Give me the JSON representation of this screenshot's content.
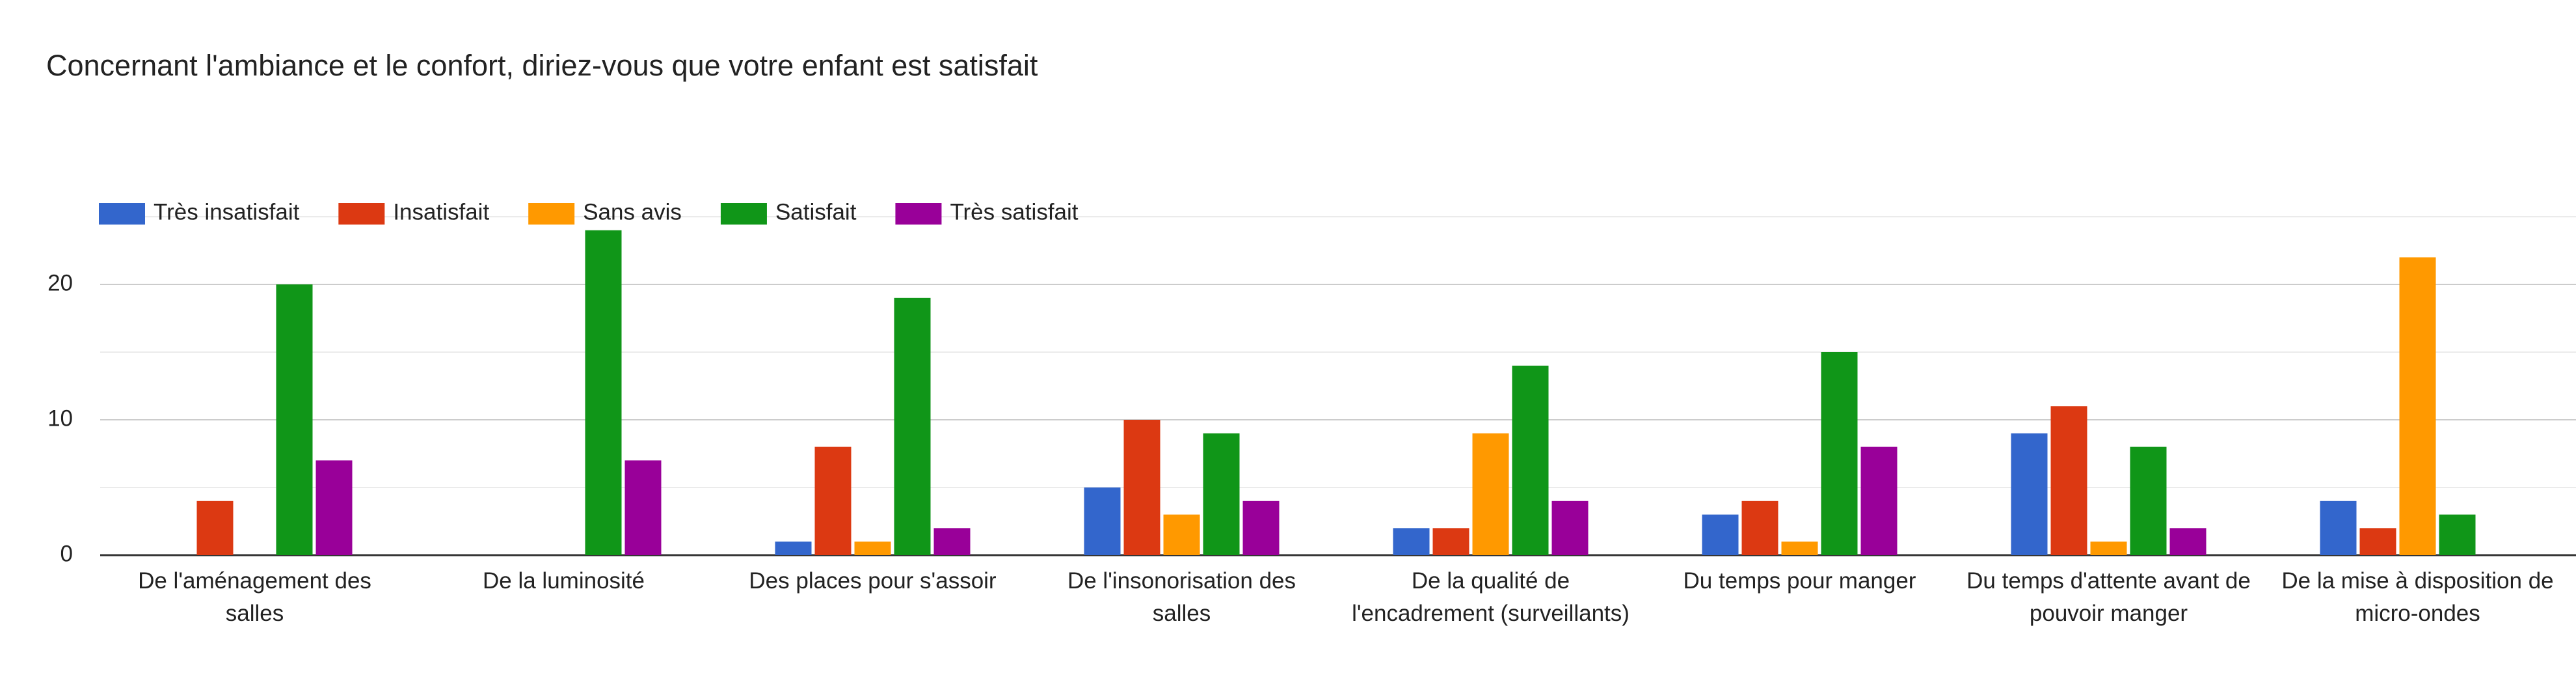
{
  "chart_data": {
    "type": "bar",
    "title": "Concernant l'ambiance et le confort, diriez-vous que votre enfant est satisfait",
    "categories": [
      "De l'aménagement des salles",
      "De la luminosité",
      "Des places pour s'assoir",
      "De l'insonorisation des salles",
      "De la qualité de l'encadrement (surveillants)",
      "Du temps pour manger",
      "Du temps d'attente avant de pouvoir manger",
      "De la mise à disposition de micro-ondes"
    ],
    "series": [
      {
        "name": "Très insatisfait",
        "color": "#3366cc",
        "values": [
          0,
          0,
          1,
          5,
          2,
          3,
          9,
          4
        ]
      },
      {
        "name": "Insatisfait",
        "color": "#dc3912",
        "values": [
          4,
          0,
          8,
          10,
          2,
          4,
          11,
          2
        ]
      },
      {
        "name": "Sans avis",
        "color": "#ff9900",
        "values": [
          0,
          0,
          1,
          3,
          9,
          1,
          1,
          22
        ]
      },
      {
        "name": "Satisfait",
        "color": "#109618",
        "values": [
          20,
          24,
          19,
          9,
          14,
          15,
          8,
          3
        ]
      },
      {
        "name": "Très satisfait",
        "color": "#990099",
        "values": [
          7,
          7,
          2,
          4,
          4,
          8,
          2,
          0
        ]
      }
    ],
    "ylim": [
      0,
      25
    ],
    "yticks": [
      0,
      10,
      20
    ],
    "minor_gridlines": [
      5,
      15,
      25
    ],
    "grid": true,
    "legend": "top"
  }
}
